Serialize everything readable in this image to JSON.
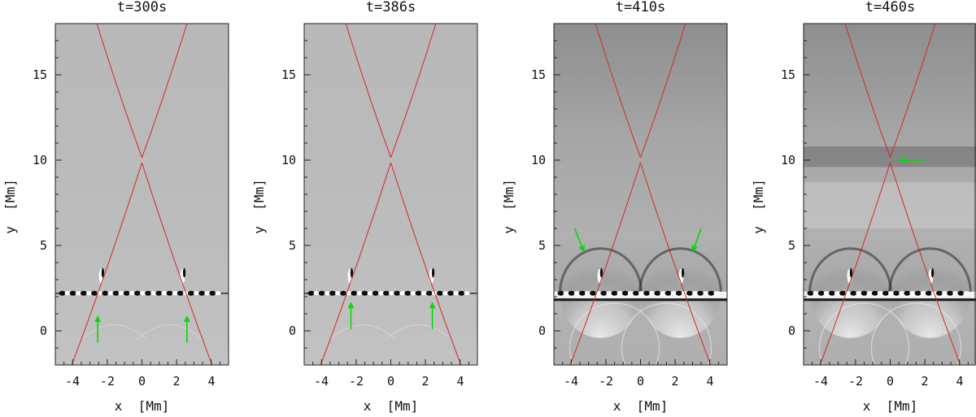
{
  "figure": {
    "panels": [
      {
        "title": "t=300s",
        "xlabel": "x  [Mm]",
        "ylabel": "y  [Mm]",
        "xlim": [
          -5,
          5
        ],
        "ylim": [
          -2,
          18
        ],
        "xticks": [
          -4,
          -2,
          0,
          2,
          4
        ],
        "xtick_labels": [
          "-4",
          "-2",
          "0",
          "2",
          "4"
        ],
        "yticks": [
          0,
          5,
          10,
          15
        ],
        "ytick_labels": [
          "0",
          "5",
          "10",
          "15"
        ],
        "background": "#bdbdbd",
        "contrast": "low",
        "arrows": [
          {
            "from": [
              -2.55,
              -0.7
            ],
            "to": [
              -2.55,
              0.9
            ],
            "color": "#00dd00"
          },
          {
            "from": [
              2.6,
              -0.7
            ],
            "to": [
              2.6,
              0.9
            ],
            "color": "#00dd00"
          }
        ]
      },
      {
        "title": "t=386s",
        "xlabel": "x  [Mm]",
        "ylabel": "y  [Mm]",
        "xlim": [
          -5,
          5
        ],
        "ylim": [
          -2,
          18
        ],
        "xticks": [
          -4,
          -2,
          0,
          2,
          4
        ],
        "xtick_labels": [
          "-4",
          "-2",
          "0",
          "2",
          "4"
        ],
        "yticks": [
          0,
          5,
          10,
          15
        ],
        "ytick_labels": [
          "0",
          "5",
          "10",
          "15"
        ],
        "background": "#bdbdbd",
        "contrast": "low",
        "arrows": [
          {
            "from": [
              -2.3,
              0.1
            ],
            "to": [
              -2.3,
              1.7
            ],
            "color": "#00dd00"
          },
          {
            "from": [
              2.4,
              0.1
            ],
            "to": [
              2.4,
              1.7
            ],
            "color": "#00dd00"
          }
        ]
      },
      {
        "title": "t=410s",
        "xlabel": "x  [Mm]",
        "ylabel": "y  [Mm]",
        "xlim": [
          -5,
          5
        ],
        "ylim": [
          -2,
          18
        ],
        "xticks": [
          -4,
          -2,
          0,
          2,
          4
        ],
        "xtick_labels": [
          "-4",
          "-2",
          "0",
          "2",
          "4"
        ],
        "yticks": [
          0,
          5,
          10,
          15
        ],
        "ytick_labels": [
          "0",
          "5",
          "10",
          "15"
        ],
        "background": "#9a9a9a",
        "contrast": "high",
        "arrows": [
          {
            "from": [
              -3.8,
              6.0
            ],
            "to": [
              -3.25,
              4.6
            ],
            "color": "#00dd00"
          },
          {
            "from": [
              3.5,
              6.0
            ],
            "to": [
              3.0,
              4.6
            ],
            "color": "#00dd00"
          }
        ]
      },
      {
        "title": "t=460s",
        "xlabel": "x  [Mm]",
        "ylabel": "y  [Mm]",
        "xlim": [
          -5,
          5
        ],
        "ylim": [
          -2,
          18
        ],
        "xticks": [
          -4,
          -2,
          0,
          2,
          4
        ],
        "xtick_labels": [
          "-4",
          "-2",
          "0",
          "2",
          "4"
        ],
        "yticks": [
          0,
          5,
          10,
          15
        ],
        "ytick_labels": [
          "0",
          "5",
          "10",
          "15"
        ],
        "background": "#a0a0a0",
        "contrast": "high",
        "arrows": [
          {
            "from": [
              2.0,
              10.0
            ],
            "to": [
              0.45,
              10.0
            ],
            "color": "#00dd00"
          }
        ]
      }
    ],
    "separatrix": {
      "color": "#d62728",
      "x_point": [
        0,
        10
      ],
      "bottom_ends": [
        -4.05,
        4.05
      ],
      "bottom_y": -2,
      "top_ends": [
        -2.6,
        2.6
      ],
      "top_y": 18
    }
  }
}
